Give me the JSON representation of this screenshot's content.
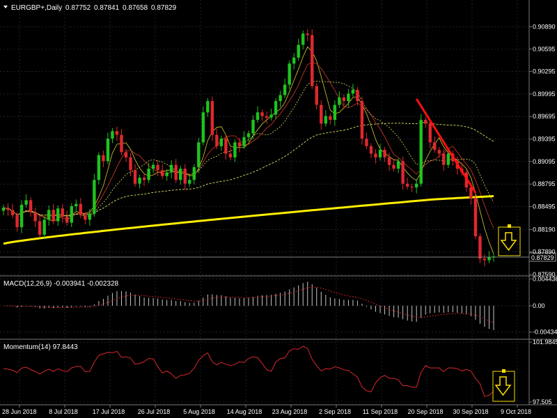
{
  "window": {
    "title": "EURGBP+,Daily",
    "ohlc": [
      "0.87752",
      "0.87841",
      "0.87658",
      "0.87829"
    ]
  },
  "colors": {
    "background": "#000000",
    "grid": "#2f3a4a",
    "bull": "#1ec41e",
    "bear": "#e0282e",
    "ma_fast": "#d8cc33",
    "ma_mid": "#d83a2a",
    "ma_slow": "#e0e066",
    "ma200": "#ffee00",
    "trendline": "#ff1010",
    "macd_hist": "#c8c8c8",
    "macd_signal": "#d8282c",
    "momentum": "#d8282c",
    "annotation": "#ffe000"
  },
  "icons": [
    "down-arrow-icon",
    "down-arrow-icon"
  ],
  "chart_data": [
    {
      "type": "candlestick",
      "title": "EURGBP+,Daily",
      "ylim": [
        0.8759,
        0.9108
      ],
      "yticks": [
        "0.90890",
        "0.90595",
        "0.90295",
        "0.89995",
        "0.89695",
        "0.89395",
        "0.89095",
        "0.88795",
        "0.88495",
        "0.88190",
        "0.87890",
        "0.87590"
      ],
      "current_price": "0.87829",
      "x_labels": [
        "28 Jun 2018",
        "8 Jul 2018",
        "17 Jul 2018",
        "26 Jul 2018",
        "5 Aug 2018",
        "14 Aug 2018",
        "23 Aug 2018",
        "2 Sep 2018",
        "11 Sep 2018",
        "20 Sep 2018",
        "30 Sep 2018",
        "9 Oct 2018"
      ],
      "close": [
        0.8848,
        0.8845,
        0.8838,
        0.8822,
        0.8852,
        0.8858,
        0.8842,
        0.883,
        0.8812,
        0.8832,
        0.8845,
        0.883,
        0.8847,
        0.8836,
        0.8828,
        0.885,
        0.8853,
        0.8838,
        0.8832,
        0.884,
        0.8885,
        0.8918,
        0.891,
        0.894,
        0.895,
        0.8945,
        0.8922,
        0.8915,
        0.8898,
        0.888,
        0.8888,
        0.8885,
        0.89,
        0.8905,
        0.8898,
        0.889,
        0.8895,
        0.8905,
        0.8885,
        0.89,
        0.888,
        0.8885,
        0.8902,
        0.8935,
        0.8975,
        0.899,
        0.8945,
        0.893,
        0.894,
        0.892,
        0.8915,
        0.8935,
        0.893,
        0.8942,
        0.8947,
        0.8965,
        0.8975,
        0.897,
        0.8968,
        0.8972,
        0.899,
        0.8998,
        0.9012,
        0.904,
        0.9048,
        0.9065,
        0.908,
        0.9078,
        0.901,
        0.8985,
        0.896,
        0.897,
        0.8965,
        0.8985,
        0.8995,
        0.899,
        0.9,
        0.9005,
        0.899,
        0.894,
        0.893,
        0.892,
        0.8915,
        0.8925,
        0.8915,
        0.8905,
        0.89,
        0.891,
        0.888,
        0.8876,
        0.8875,
        0.888,
        0.8965,
        0.896,
        0.8935,
        0.8925,
        0.892,
        0.8905,
        0.892,
        0.891,
        0.89,
        0.8895,
        0.8875,
        0.886,
        0.881,
        0.878,
        0.8778,
        0.8782,
        0.8783
      ],
      "series": [
        {
          "name": "",
          "style": "ma_fast"
        },
        {
          "name": "",
          "style": "ma_mid"
        },
        {
          "name": "",
          "style": "ma_slow"
        },
        {
          "name": "",
          "style": "ma200"
        }
      ]
    },
    {
      "type": "bar",
      "title": "MACD(12,26,9) -0.003941 -0.002328",
      "ylim": [
        -0.0053,
        0.0047
      ],
      "yticks": [
        "0.004436",
        "0.00",
        "-0.00434"
      ],
      "series": [
        {
          "name": "",
          "style": "histogram"
        },
        {
          "name": "",
          "style": "signal"
        }
      ]
    },
    {
      "type": "line",
      "title": "Momentum(14) 97.8443",
      "ylim": [
        97.4,
        102.1
      ],
      "yticks": [
        "101.9845",
        "97.505"
      ],
      "series": [
        {
          "name": "",
          "style": "momentum"
        }
      ]
    }
  ]
}
